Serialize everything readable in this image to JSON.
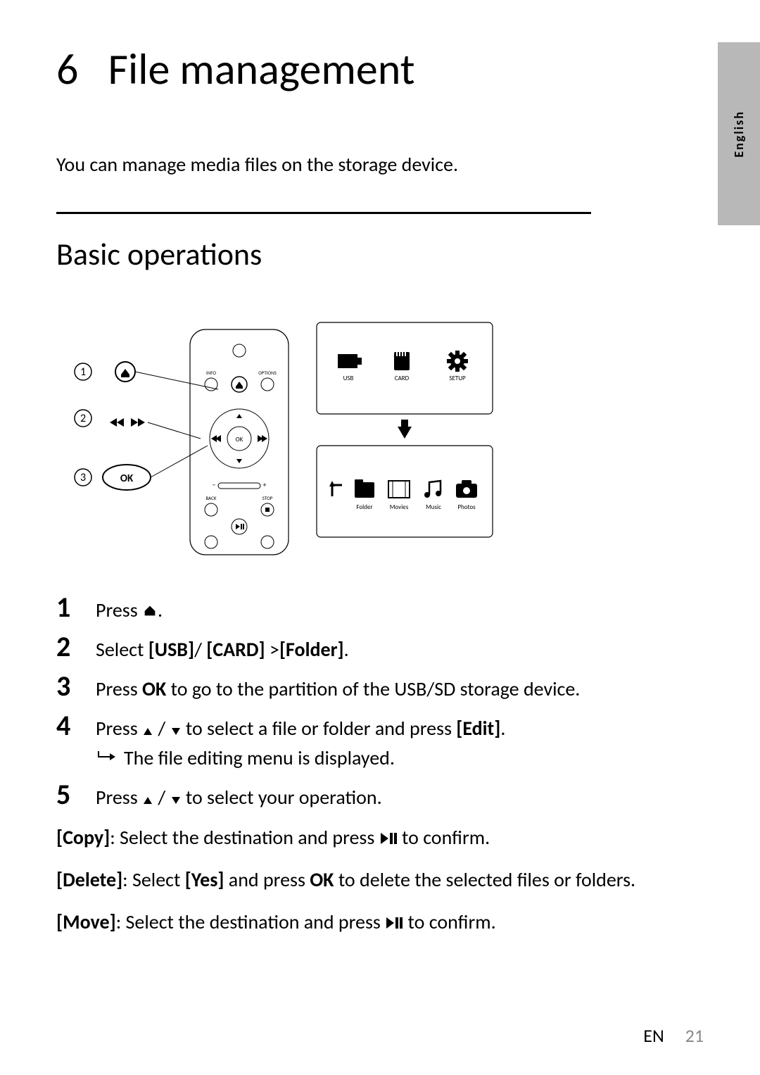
{
  "chapter_number": "6",
  "chapter_title": "File management",
  "language_tab": "English",
  "intro": "You can manage media files on the storage device.",
  "section_title": "Basic operations",
  "diagram": {
    "callouts": [
      "1",
      "2",
      "3"
    ],
    "ok_label": "OK",
    "remote": {
      "info": "INFO",
      "options": "OPTIONS",
      "ok": "OK",
      "back": "BACK",
      "stop": "STOP"
    },
    "screen_top": {
      "usb": "USB",
      "card": "CARD",
      "setup": "SETUP"
    },
    "screen_bottom": {
      "folder": "Folder",
      "movies": "Movies",
      "music": "Music",
      "photos": "Photos"
    }
  },
  "steps": [
    {
      "n": "1",
      "body_parts": [
        "Press ",
        "HOME_ICON",
        "."
      ]
    },
    {
      "n": "2",
      "body_parts": [
        "Select ",
        "B:[USB]",
        "/ ",
        "B:[CARD]",
        " >",
        "B:[Folder]",
        "."
      ]
    },
    {
      "n": "3",
      "body_parts": [
        "Press ",
        "B:OK",
        " to go to the partition of the USB/SD storage device."
      ]
    },
    {
      "n": "4",
      "body_parts": [
        "Press ",
        "TRI_UP",
        " / ",
        "TRI_DOWN",
        " to select a file or folder and press ",
        "B:[Edit]",
        "."
      ],
      "sub": "The file editing menu is displayed."
    },
    {
      "n": "5",
      "body_parts": [
        "Press ",
        "TRI_UP",
        " / ",
        "TRI_DOWN",
        " to select your operation."
      ]
    }
  ],
  "paragraphs": [
    [
      "B:[Copy]",
      ": Select the destination and press ",
      "PLAYPAUSE",
      " to confirm."
    ],
    [
      "B:[Delete]",
      ": Select ",
      "B:[Yes]",
      " and press ",
      "B:OK",
      " to delete the selected files or folders."
    ],
    [
      "B:[Move]",
      ": Select the destination and press ",
      "PLAYPAUSE",
      " to confirm."
    ]
  ],
  "footer": {
    "lang": "EN",
    "page": "21"
  },
  "colors": {
    "text": "#000000",
    "bg": "#ffffff",
    "tab": "#b8b8b8",
    "page_num": "#888888"
  }
}
